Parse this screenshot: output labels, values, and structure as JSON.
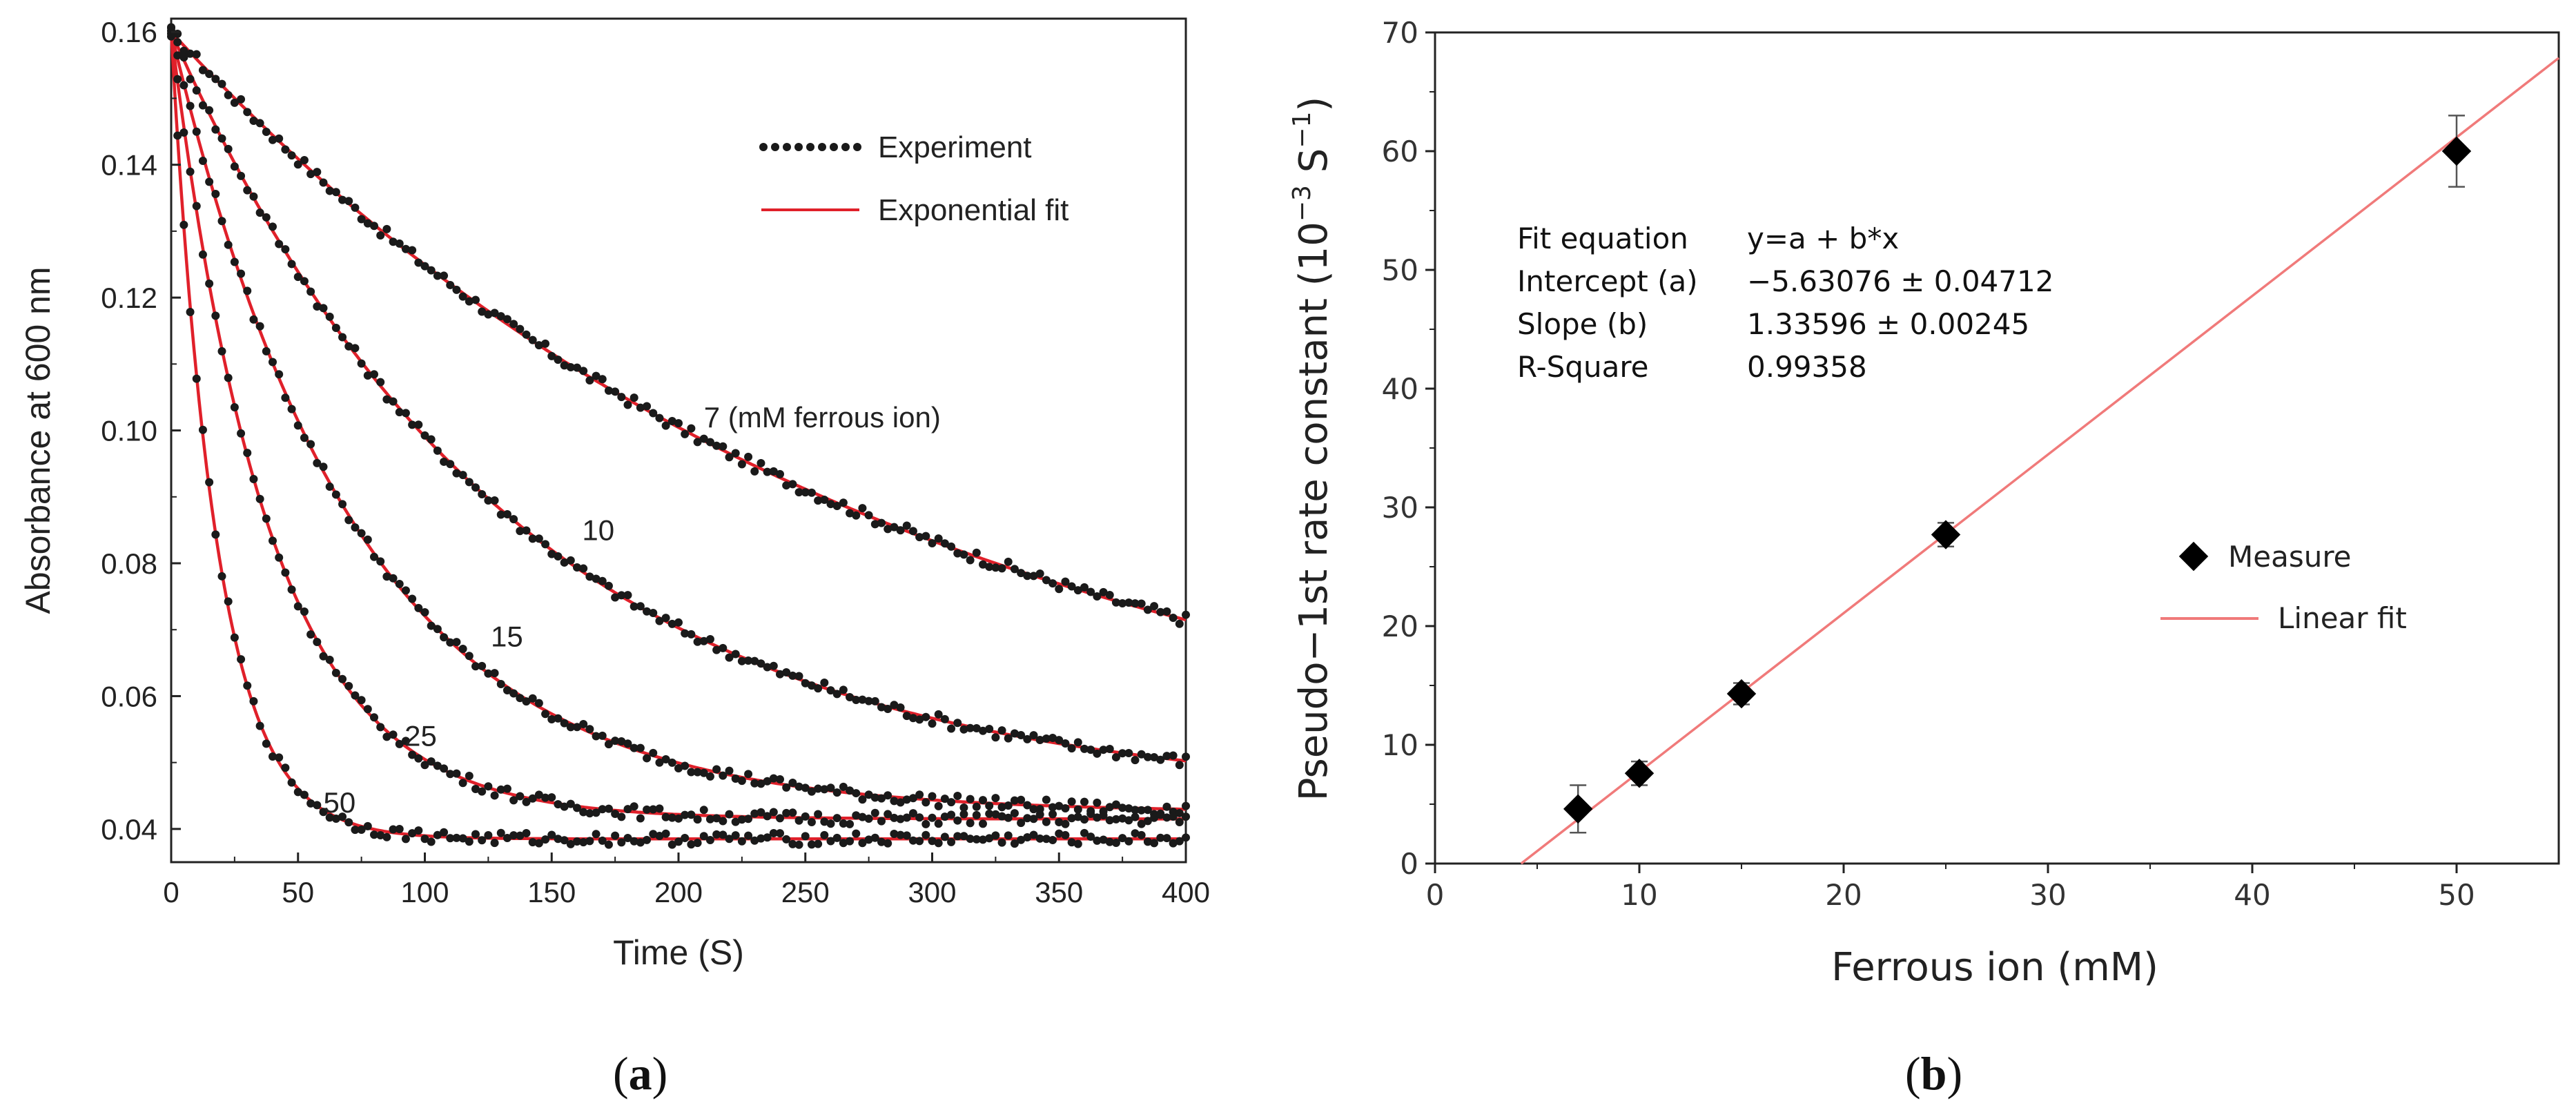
{
  "chart_data": [
    {
      "type": "line",
      "panel_label": "(a)",
      "panel_letter": "a",
      "xlabel": "Time (S)",
      "ylabel": "Absorbance at 600 nm",
      "xlim": [
        0,
        400
      ],
      "ylim": [
        0.035,
        0.162
      ],
      "xticks": [
        0,
        50,
        100,
        150,
        200,
        250,
        300,
        350,
        400
      ],
      "yticks": [
        0.04,
        0.06,
        0.08,
        0.1,
        0.12,
        0.14,
        0.16
      ],
      "ytick_labels": [
        "0.04",
        "0.06",
        "0.08",
        "0.10",
        "0.12",
        "0.14",
        "0.16"
      ],
      "legend": {
        "position": "top-right",
        "experiment": "Experiment",
        "fit": "Exponential fit"
      },
      "experiment_color": "#1a1a1a",
      "fit_color": "#e0202a",
      "series": [
        {
          "name": "7",
          "curve_label": "7  (mM ferrous ion)",
          "A0": 0.16,
          "Ainf": 0.044,
          "k": 0.0036,
          "x_end": 400,
          "label_x": 210,
          "label_y": 0.1005
        },
        {
          "name": "10",
          "curve_label": "10",
          "A0": 0.16,
          "Ainf": 0.0445,
          "k": 0.0075,
          "x_end": 400,
          "label_x": 162,
          "label_y": 0.0835
        },
        {
          "name": "15",
          "curve_label": "15",
          "A0": 0.16,
          "Ainf": 0.0425,
          "k": 0.0138,
          "x_end": 400,
          "label_x": 126,
          "label_y": 0.0675
        },
        {
          "name": "25",
          "curve_label": "25",
          "A0": 0.16,
          "Ainf": 0.0415,
          "k": 0.0258,
          "x_end": 400,
          "label_x": 92,
          "label_y": 0.0525
        },
        {
          "name": "50",
          "curve_label": "50",
          "A0": 0.16,
          "Ainf": 0.0385,
          "k": 0.0555,
          "x_end": 400,
          "label_x": 60,
          "label_y": 0.0425
        }
      ]
    },
    {
      "type": "scatter",
      "panel_label": "(b)",
      "panel_letter": "b",
      "xlabel": "Ferrous ion (mM)",
      "ylabel": "Pseudo−1st rate constant (10−3 S−1)",
      "ylabel_main": "Pseudo−1st rate constant (10",
      "ylabel_exp1": "−3",
      "ylabel_mid": " S",
      "ylabel_exp2": "−1",
      "ylabel_end": ")",
      "xlim": [
        0,
        55
      ],
      "ylim": [
        0,
        70
      ],
      "xticks": [
        0,
        10,
        20,
        30,
        40,
        50
      ],
      "yticks": [
        0,
        10,
        20,
        30,
        40,
        50,
        60,
        70
      ],
      "legend": {
        "position": "right",
        "measure": "Measure",
        "fit": "Linear fit"
      },
      "fit_color": "#f07a7a",
      "points": [
        {
          "x": 7,
          "y": 4.6,
          "err": 2.0
        },
        {
          "x": 10,
          "y": 7.6,
          "err": 1.0
        },
        {
          "x": 15,
          "y": 14.3,
          "err": 0.9
        },
        {
          "x": 25,
          "y": 27.7,
          "err": 1.0
        },
        {
          "x": 50,
          "y": 60.0,
          "err": 3.0
        }
      ],
      "fit": {
        "intercept": -5.63076,
        "slope": 1.33596
      },
      "fit_table": [
        {
          "key": "Fit equation",
          "value": "y=a + b*x"
        },
        {
          "key": "Intercept (a)",
          "value": "−5.63076 ± 0.04712"
        },
        {
          "key": "Slope (b)",
          "value": "1.33596 ± 0.00245"
        },
        {
          "key": "R-Square",
          "value": "0.99358"
        }
      ]
    }
  ]
}
